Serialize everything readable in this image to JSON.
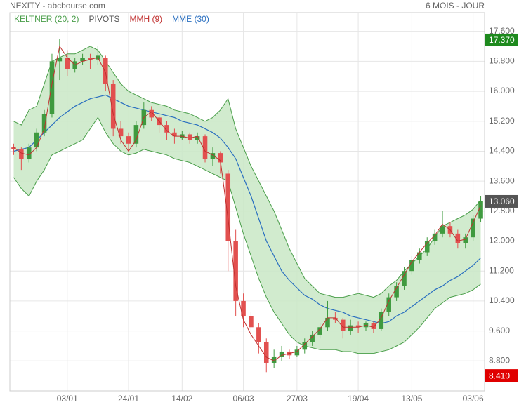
{
  "chart_data": {
    "type": "candlestick",
    "title": "NEXITY - abcbourse.com",
    "subtitle": "6 MOIS - JOUR",
    "categories": [
      null,
      null,
      null,
      null,
      null,
      null,
      null,
      "03/01",
      null,
      null,
      null,
      null,
      null,
      null,
      null,
      "24/01",
      null,
      null,
      null,
      null,
      null,
      null,
      "14/02",
      null,
      null,
      null,
      null,
      null,
      null,
      null,
      "06/03",
      null,
      null,
      null,
      null,
      null,
      null,
      "27/03",
      null,
      null,
      null,
      null,
      null,
      null,
      null,
      "19/04",
      null,
      null,
      null,
      null,
      null,
      null,
      "13/05",
      null,
      null,
      null,
      null,
      null,
      null,
      null,
      "03/06",
      null
    ],
    "candles": {
      "up_color": "#3f9a3f",
      "down_color": "#e2504f",
      "open": [
        14.5,
        14.45,
        14.2,
        14.5,
        14.9,
        15.4,
        16.8,
        16.9,
        16.6,
        16.8,
        16.9,
        16.85,
        16.9,
        16.2,
        15.0,
        14.8,
        14.6,
        15.1,
        15.5,
        15.3,
        15.1,
        14.9,
        14.75,
        14.85,
        14.7,
        14.8,
        14.2,
        14.35,
        13.8,
        12.0,
        10.4,
        10.0,
        9.7,
        9.3,
        8.75,
        8.9,
        9.05,
        8.95,
        9.1,
        9.3,
        9.5,
        9.7,
        9.95,
        9.9,
        9.6,
        9.75,
        9.7,
        9.8,
        9.65,
        10.1,
        10.5,
        10.8,
        11.2,
        11.5,
        11.7,
        12.0,
        12.2,
        12.4,
        12.2,
        11.95,
        12.1,
        12.6
      ],
      "high": [
        14.6,
        14.5,
        14.6,
        15.0,
        15.5,
        17.0,
        17.4,
        17.1,
        16.9,
        17.0,
        17.0,
        17.2,
        16.95,
        16.3,
        15.2,
        14.9,
        15.2,
        15.7,
        15.6,
        15.4,
        15.2,
        15.0,
        14.95,
        14.9,
        14.9,
        14.85,
        14.5,
        14.4,
        13.9,
        12.3,
        10.6,
        10.1,
        9.8,
        9.4,
        9.1,
        9.2,
        9.1,
        9.2,
        9.4,
        9.6,
        9.8,
        10.4,
        10.1,
        9.95,
        9.9,
        9.85,
        9.85,
        9.85,
        10.2,
        10.6,
        10.9,
        11.3,
        11.6,
        11.8,
        12.1,
        12.3,
        12.8,
        12.5,
        12.3,
        12.2,
        12.7,
        13.2
      ],
      "low": [
        14.3,
        13.9,
        14.1,
        14.4,
        14.8,
        15.3,
        16.3,
        16.4,
        16.5,
        16.7,
        16.6,
        16.7,
        16.0,
        14.8,
        14.6,
        14.4,
        14.5,
        15.0,
        15.2,
        14.9,
        14.7,
        14.6,
        14.7,
        14.6,
        14.6,
        14.1,
        14.0,
        13.8,
        11.2,
        10.0,
        9.7,
        9.4,
        9.0,
        8.5,
        8.6,
        8.8,
        8.85,
        8.9,
        9.0,
        9.2,
        9.4,
        9.6,
        9.8,
        9.4,
        9.5,
        9.55,
        9.6,
        9.55,
        9.6,
        10.0,
        10.4,
        10.7,
        11.1,
        11.4,
        11.6,
        11.9,
        12.1,
        12.1,
        11.8,
        11.8,
        12.0,
        12.5
      ],
      "close": [
        14.45,
        14.2,
        14.5,
        14.9,
        15.4,
        16.8,
        16.9,
        16.6,
        16.8,
        16.9,
        16.85,
        16.95,
        16.2,
        15.0,
        14.8,
        14.6,
        15.1,
        15.5,
        15.3,
        15.1,
        14.9,
        14.8,
        14.85,
        14.7,
        14.8,
        14.2,
        14.35,
        14.1,
        12.0,
        10.4,
        10.0,
        9.7,
        9.3,
        8.75,
        8.9,
        9.05,
        8.95,
        9.1,
        9.3,
        9.5,
        9.7,
        9.95,
        9.9,
        9.6,
        9.75,
        9.7,
        9.8,
        9.65,
        10.1,
        10.5,
        10.8,
        11.2,
        11.5,
        11.7,
        12.0,
        12.2,
        12.4,
        12.2,
        11.95,
        12.1,
        12.6,
        13.06
      ]
    },
    "keltner": {
      "name": "KELTNER (20, 2)",
      "color": "#4a9e4a",
      "fill": "#c9e8c6",
      "upper": [
        15.2,
        15.1,
        15.5,
        15.6,
        16.2,
        16.8,
        16.9,
        17.0,
        17.0,
        17.1,
        17.2,
        17.1,
        16.8,
        16.5,
        16.2,
        16.0,
        15.9,
        15.8,
        15.7,
        15.65,
        15.6,
        15.5,
        15.45,
        15.4,
        15.3,
        15.2,
        15.3,
        15.5,
        15.8,
        15.0,
        14.5,
        14.0,
        13.6,
        13.2,
        12.8,
        12.3,
        11.8,
        11.4,
        11.0,
        10.8,
        10.6,
        10.55,
        10.5,
        10.5,
        10.55,
        10.6,
        10.55,
        10.5,
        10.6,
        10.8,
        10.95,
        11.2,
        11.4,
        11.6,
        11.8,
        12.1,
        12.4,
        12.5,
        12.6,
        12.7,
        12.85,
        13.1
      ],
      "lower": [
        13.7,
        13.4,
        13.2,
        13.6,
        13.9,
        14.3,
        14.4,
        14.5,
        14.6,
        14.7,
        15.0,
        15.3,
        14.9,
        14.6,
        14.4,
        14.3,
        14.35,
        14.45,
        14.4,
        14.35,
        14.3,
        14.2,
        14.15,
        14.1,
        14.0,
        13.9,
        13.8,
        13.7,
        13.6,
        12.9,
        12.2,
        11.6,
        11.0,
        10.5,
        10.1,
        9.8,
        9.5,
        9.3,
        9.2,
        9.15,
        9.1,
        9.1,
        9.1,
        9.05,
        9.05,
        9.0,
        9.0,
        9.0,
        9.05,
        9.1,
        9.2,
        9.3,
        9.5,
        9.7,
        9.95,
        10.2,
        10.35,
        10.5,
        10.55,
        10.6,
        10.7,
        10.85
      ]
    },
    "pivots": {
      "name": "PIVOTS",
      "color": "#555555"
    },
    "series": [
      {
        "name": "MMH (9)",
        "color": "#c0302f",
        "values": [
          14.5,
          14.35,
          14.3,
          14.5,
          15.0,
          16.2,
          17.2,
          16.9,
          16.7,
          16.8,
          16.85,
          16.9,
          16.5,
          15.4,
          14.7,
          14.4,
          14.7,
          15.3,
          15.45,
          15.2,
          14.95,
          14.8,
          14.8,
          14.75,
          14.8,
          14.4,
          14.3,
          14.15,
          12.6,
          10.8,
          9.9,
          9.5,
          9.2,
          8.9,
          8.8,
          8.95,
          9.0,
          9.05,
          9.25,
          9.45,
          9.65,
          9.95,
          9.95,
          9.7,
          9.7,
          9.7,
          9.75,
          9.7,
          9.95,
          10.4,
          10.75,
          11.1,
          11.45,
          11.7,
          11.95,
          12.15,
          12.45,
          12.3,
          12.0,
          12.05,
          12.5,
          12.95
        ]
      },
      {
        "name": "MME (30)",
        "color": "#2a6fc0",
        "values": [
          14.4,
          14.45,
          14.5,
          14.7,
          14.9,
          15.1,
          15.3,
          15.45,
          15.6,
          15.7,
          15.8,
          15.85,
          15.9,
          15.8,
          15.7,
          15.6,
          15.55,
          15.5,
          15.45,
          15.4,
          15.35,
          15.3,
          15.2,
          15.15,
          15.1,
          15.0,
          14.9,
          14.75,
          14.5,
          14.2,
          13.7,
          13.2,
          12.6,
          12.0,
          11.6,
          11.2,
          10.95,
          10.75,
          10.55,
          10.45,
          10.3,
          10.2,
          10.15,
          10.1,
          10.0,
          9.95,
          9.9,
          9.85,
          9.8,
          9.85,
          10.0,
          10.1,
          10.25,
          10.4,
          10.55,
          10.7,
          10.8,
          10.95,
          11.05,
          11.2,
          11.35,
          11.55
        ]
      }
    ],
    "price_markers": [
      {
        "value": 17.37,
        "label": "17.370",
        "color": "#1e8a1e"
      },
      {
        "value": 13.06,
        "label": "13.060",
        "color": "#555555"
      },
      {
        "value": 8.41,
        "label": "8.410",
        "color": "#e00000"
      }
    ],
    "ylim": [
      8.0,
      18.1
    ],
    "yticks": [
      {
        "value": 8.8,
        "label": "8.800"
      },
      {
        "value": 9.6,
        "label": "9.600"
      },
      {
        "value": 10.4,
        "label": "10.400"
      },
      {
        "value": 11.2,
        "label": "11.200"
      },
      {
        "value": 12,
        "label": "12.000"
      },
      {
        "value": 12.8,
        "label": "12.800"
      },
      {
        "value": 13.6,
        "label": "13.600"
      },
      {
        "value": 14.4,
        "label": "14.400"
      },
      {
        "value": 15.2,
        "label": "15.200"
      },
      {
        "value": 16,
        "label": "16.000"
      },
      {
        "value": 16.8,
        "label": "16.800"
      },
      {
        "value": 17.6,
        "label": "17.600"
      }
    ],
    "grid": true
  }
}
